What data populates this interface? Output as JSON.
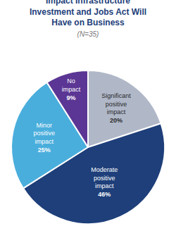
{
  "chart_data": {
    "type": "pie",
    "title": "Impact Infrastructure\nInvestment and Jobs Act Will\nHave on Business",
    "subtitle": "(N=35)",
    "categories": [
      "Significant\npositive\nimpact",
      "Moderate\npositive\nimpact",
      "Minor\npositive\nimpact",
      "No\nimpact"
    ],
    "values": [
      20,
      46,
      25,
      9
    ],
    "value_labels": [
      "20%",
      "46%",
      "25%",
      "9%"
    ],
    "colors": [
      "#b0b8c8",
      "#1e3f7a",
      "#4aaedc",
      "#5b3694"
    ],
    "data_labels": true,
    "legend": false
  }
}
